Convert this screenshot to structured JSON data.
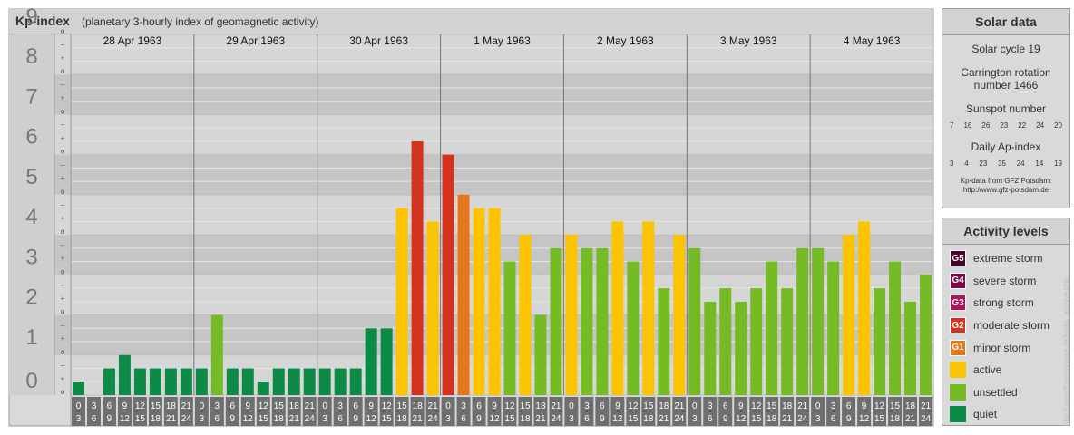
{
  "header": {
    "title": "Kp-index",
    "subtitle": "(planetary 3-hourly index of geomagnetic activity)"
  },
  "chart_data": {
    "type": "bar",
    "title": "Kp-index",
    "subtitle": "(planetary 3-hourly index of geomagnetic activity)",
    "ylim": [
      0,
      9
    ],
    "y_ticks": [
      "0",
      "1",
      "2",
      "3",
      "4",
      "5",
      "6",
      "7",
      "8",
      "9"
    ],
    "sub_ticks": [
      "o",
      "+",
      "–"
    ],
    "days": [
      "28 Apr 1963",
      "29 Apr 1963",
      "30 Apr 1963",
      "1 May 1963",
      "2 May 1963",
      "3 May 1963",
      "4 May 1963"
    ],
    "interval_start_labels": [
      "0",
      "3",
      "6",
      "9",
      "12",
      "15",
      "18",
      "21"
    ],
    "interval_end_labels": [
      "3",
      "6",
      "9",
      "12",
      "15",
      "18",
      "21",
      "24"
    ],
    "values": [
      0.333,
      0,
      0.667,
      1,
      0.667,
      0.667,
      0.667,
      0.667,
      0.667,
      2,
      0.667,
      0.667,
      0.333,
      0.667,
      0.667,
      0.667,
      0.667,
      0.667,
      0.667,
      1.667,
      1.667,
      4.667,
      6.333,
      4.333,
      6,
      5,
      4.667,
      4.667,
      3.333,
      4,
      2,
      3.667,
      4,
      3.667,
      3.667,
      4.333,
      3.333,
      4.333,
      2.667,
      4,
      3.667,
      2.333,
      2.667,
      2.333,
      2.667,
      3.333,
      2.667,
      3.667,
      3.667,
      3.333,
      4,
      4.333,
      2.667,
      3.333,
      2.333,
      3
    ],
    "levels": [
      "quiet",
      "unsettled",
      "active",
      "minor storm",
      "moderate storm",
      "strong storm",
      "severe storm",
      "extreme storm"
    ],
    "colors": {
      "quiet": "#0c8a46",
      "unsettled": "#74bb26",
      "active": "#fcc300",
      "minor storm": "#e37719",
      "moderate storm": "#d2321e",
      "strong storm": "#b3125e",
      "severe storm": "#7d0a48",
      "extreme storm": "#4a0329"
    }
  },
  "solar": {
    "title": "Solar data",
    "cycle": "Solar cycle 19",
    "carrington_line1": "Carrington rotation",
    "carrington_line2": "number 1466",
    "sunspot_title": "Sunspot number",
    "sunspot_values": [
      "7",
      "16",
      "26",
      "23",
      "22",
      "24",
      "20"
    ],
    "ap_title": "Daily Ap-index",
    "ap_values": [
      "3",
      "4",
      "23",
      "35",
      "24",
      "14",
      "19"
    ],
    "credit_line1": "Kp-data from GFZ Potsdam:",
    "credit_line2": "http://www.gfz-potsdam.de"
  },
  "legend": {
    "title": "Activity levels",
    "items": [
      {
        "badge": "G5",
        "label": "extreme storm",
        "color": "#4a0329"
      },
      {
        "badge": "G4",
        "label": "severe storm",
        "color": "#7d0a48"
      },
      {
        "badge": "G3",
        "label": "strong storm",
        "color": "#b3125e"
      },
      {
        "badge": "G2",
        "label": "moderate storm",
        "color": "#d2321e"
      },
      {
        "badge": "G1",
        "label": "minor storm",
        "color": "#e37719"
      },
      {
        "badge": "",
        "label": "active",
        "color": "#fcc300"
      },
      {
        "badge": "",
        "label": "unsettled",
        "color": "#74bb26"
      },
      {
        "badge": "",
        "label": "quiet",
        "color": "#0c8a46"
      }
    ]
  },
  "side_credit": "http://www.ffuernstrasse.de/kp/kp_archive.php"
}
